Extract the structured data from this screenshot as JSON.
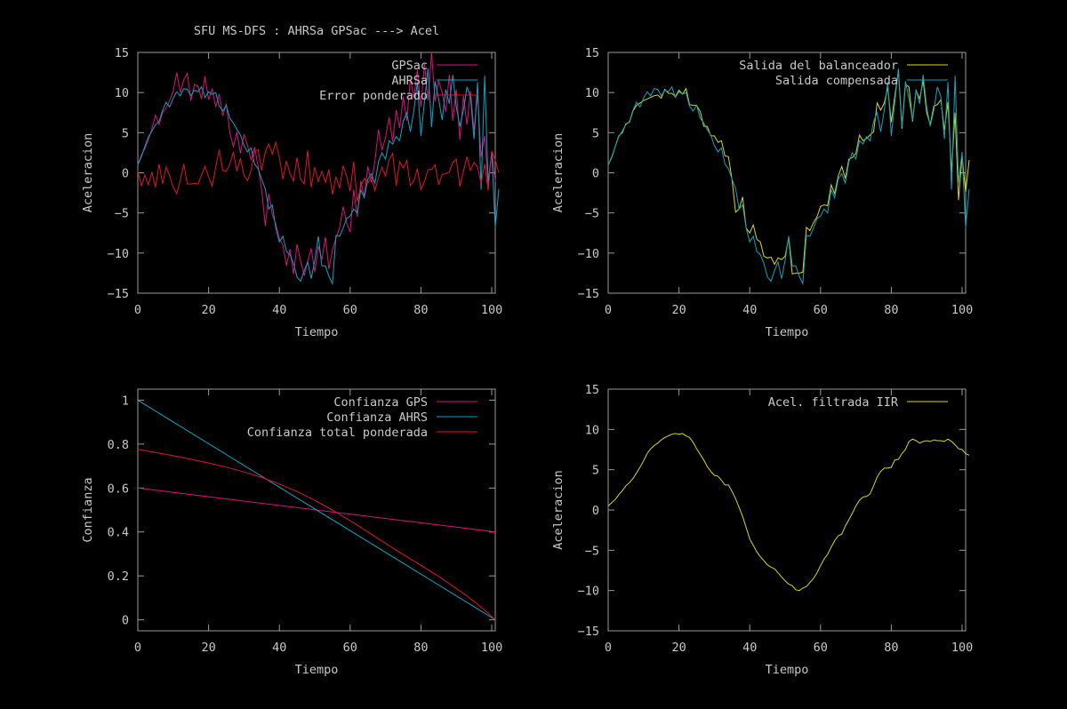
{
  "figure": {
    "title": "SFU MS-DFS : AHRSa GPSac ---> Acel"
  },
  "colors": {
    "background": "#000000",
    "axes": "#9a9a9a",
    "text": "#c8c8c8",
    "magenta": "#d6147d",
    "cyan": "#10a3c0",
    "red": "#e0142e",
    "yellow": "#d7d714"
  },
  "chart_data": [
    {
      "id": "p1",
      "type": "line",
      "title": "",
      "xlabel": "Tiempo",
      "ylabel": "Aceleracion",
      "xlim": [
        0,
        101
      ],
      "ylim": [
        -15,
        15
      ],
      "xticks": [
        0,
        20,
        40,
        60,
        80,
        100
      ],
      "yticks": [
        -15,
        -10,
        -5,
        0,
        5,
        10,
        15
      ],
      "grid": false,
      "legend_position": "top-right",
      "series": [
        {
          "name": "GPSac",
          "color": "#d6147d",
          "y": [
            1.0,
            2.2,
            3.0,
            4.1,
            5.5,
            7.2,
            6.0,
            7.5,
            8.1,
            9.0,
            10.2,
            12.5,
            10.0,
            11.6,
            12.4,
            9.0,
            11.0,
            10.8,
            9.2,
            12.0,
            9.1,
            10.5,
            8.2,
            9.8,
            7.1,
            8.6,
            5.0,
            3.2,
            5.1,
            2.4,
            4.8,
            3.4,
            1.6,
            3.2,
            0.8,
            -2.1,
            -6.6,
            -2.6,
            -5.2,
            -6.4,
            -8.2,
            -9.0,
            -11.6,
            -9.5,
            -12.6,
            -8.9,
            -11.0,
            -12.8,
            -11.1,
            -9.4,
            -12.4,
            -9.1,
            -10.8,
            -8.0,
            -12.0,
            -9.6,
            -8.1,
            -6.9,
            -4.2,
            -6.2,
            -7.4,
            -2.1,
            -5.5,
            -1.0,
            -3.0,
            0.8,
            -1.2,
            1.5,
            5.4,
            2.8,
            4.4,
            6.9,
            3.9,
            7.8,
            5.6,
            9.5,
            6.5,
            11.7,
            9.4,
            12.8,
            8.2,
            13.6,
            9.0,
            15.0,
            8.9,
            11.5,
            10.0,
            7.6,
            12.2,
            6.5,
            10.4,
            4.1,
            9.6,
            6.0,
            10.2,
            5.3,
            9.7,
            2.0,
            4.6,
            -1.5,
            2.7,
            -1.1
          ]
        },
        {
          "name": "AHRSa",
          "color": "#10a3c0",
          "y": [
            1.0,
            2.0,
            3.3,
            4.5,
            5.2,
            6.0,
            6.4,
            7.8,
            8.8,
            8.2,
            9.3,
            10.1,
            9.6,
            10.5,
            10.4,
            9.6,
            10.3,
            10.1,
            10.7,
            9.4,
            10.1,
            9.8,
            10.0,
            8.3,
            7.7,
            8.4,
            6.8,
            6.2,
            5.4,
            4.7,
            3.4,
            2.6,
            3.1,
            1.1,
            0.5,
            -0.8,
            -2.0,
            -4.5,
            -4.0,
            -6.9,
            -8.6,
            -7.9,
            -9.8,
            -10.2,
            -11.3,
            -13.0,
            -13.5,
            -12.2,
            -11.1,
            -13.2,
            -10.9,
            -7.9,
            -11.6,
            -11.6,
            -12.9,
            -13.8,
            -7.8,
            -7.9,
            -6.9,
            -5.7,
            -5.4,
            -4.5,
            -5.0,
            -2.1,
            -3.1,
            -0.8,
            -0.1,
            -1.3,
            1.4,
            2.5,
            1.7,
            4.0,
            3.6,
            4.5,
            4.0,
            6.4,
            7.5,
            5.1,
            7.8,
            11.3,
            4.6,
            8.9,
            13.0,
            5.7,
            11.4,
            9.2,
            6.6,
            10.4,
            8.6,
            12.2,
            8.2,
            5.8,
            7.8,
            10.7,
            9.5,
            4.2,
            11.3,
            -2.1,
            12.1,
            -1.2,
            2.6,
            -6.8,
            -2.0
          ]
        },
        {
          "name": "Error ponderado",
          "color": "#e0142e",
          "y": [
            0.2,
            -1.6,
            -0.3,
            -1.5,
            0.1,
            -1.8,
            1.1,
            -1.4,
            0.7,
            -0.4,
            -1.8,
            -2.6,
            -0.9,
            1.1,
            -1.4,
            -1.4,
            -1.3,
            -1.4,
            -0.3,
            0.8,
            -0.5,
            -1.7,
            0.7,
            2.9,
            0.3,
            0.2,
            1.1,
            2.6,
            0.2,
            1.8,
            -0.3,
            -1.0,
            0.3,
            2.7,
            2.9,
            0.3,
            2.6,
            3.6,
            2.3,
            3.8,
            1.9,
            -0.8,
            1.5,
            -0.1,
            -1.0,
            1.9,
            -0.8,
            -1.4,
            2.8,
            -1.8,
            0.7,
            -1.1,
            0.2,
            -1.2,
            0.4,
            -2.7,
            -0.5,
            -1.9,
            0.9,
            -0.4,
            -2.3,
            1.4,
            -3.6,
            -1.7,
            -0.7,
            -1.3,
            -0.5,
            -2.2,
            -0.6,
            0.7,
            -0.4,
            1.6,
            2.4,
            -1.6,
            1.4,
            0.6,
            1.5,
            -1.6,
            -1.0,
            0.5,
            -2.1,
            -1.1,
            0.4,
            0.4,
            1.0,
            -1.5,
            -0.2,
            -0.1,
            0.1,
            1.3,
            1.7,
            -1.7,
            0.2,
            2.0,
            0.3,
            1.3,
            0.7,
            -1.3,
            1.1,
            -2.2,
            2.7,
            1.6,
            0.0
          ]
        }
      ]
    },
    {
      "id": "p2",
      "type": "line",
      "title": "",
      "xlabel": "Tiempo",
      "ylabel": "Aceleracion",
      "xlim": [
        0,
        101
      ],
      "ylim": [
        -15,
        15
      ],
      "xticks": [
        0,
        20,
        40,
        60,
        80,
        100
      ],
      "yticks": [
        -15,
        -10,
        -5,
        0,
        5,
        10,
        15
      ],
      "grid": false,
      "legend_position": "top-right",
      "series": [
        {
          "name": "Salida del balanceador",
          "color": "#d7d714",
          "y": [
            1.0,
            1.9,
            3.3,
            4.6,
            5.0,
            6.1,
            6.3,
            7.7,
            8.4,
            8.7,
            9.0,
            9.2,
            9.4,
            9.6,
            9.7,
            9.3,
            10.4,
            9.9,
            9.9,
            9.5,
            10.3,
            9.8,
            10.5,
            8.5,
            8.4,
            8.4,
            7.6,
            5.8,
            5.8,
            4.6,
            4.6,
            3.8,
            4.0,
            2.1,
            2.0,
            -0.9,
            -4.9,
            -4.5,
            -3.0,
            -6.9,
            -7.5,
            -6.5,
            -8.3,
            -8.6,
            -10.4,
            -10.6,
            -10.5,
            -11.4,
            -10.6,
            -10.8,
            -10.4,
            -8.1,
            -12.6,
            -12.5,
            -12.5,
            -12.4,
            -6.8,
            -7.2,
            -6.2,
            -5.5,
            -4.2,
            -4.0,
            -4.1,
            -1.5,
            -2.6,
            -0.4,
            0.8,
            -0.7,
            1.7,
            1.9,
            2.4,
            4.7,
            4.0,
            4.3,
            4.7,
            5.1,
            8.7,
            7.8,
            8.7,
            10.6,
            6.3,
            9.6,
            12.7,
            5.5,
            11.0,
            10.7,
            6.4,
            10.3,
            9.2,
            11.5,
            7.5,
            6.0,
            8.3,
            8.5,
            9.1,
            5.3,
            8.8,
            0.1,
            7.5,
            -3.4,
            2.1,
            -2.4,
            1.6
          ]
        },
        {
          "name": "Salida compensada",
          "color": "#10a3c0",
          "y": [
            1.0,
            2.0,
            3.3,
            4.5,
            5.2,
            6.0,
            6.4,
            7.8,
            8.8,
            8.2,
            9.3,
            10.1,
            9.6,
            10.5,
            10.4,
            9.6,
            10.3,
            10.1,
            10.7,
            9.4,
            10.1,
            9.8,
            10.0,
            8.3,
            7.7,
            8.4,
            6.8,
            6.2,
            5.4,
            4.7,
            3.4,
            2.6,
            3.1,
            1.1,
            0.5,
            -0.8,
            -2.0,
            -4.5,
            -4.0,
            -6.9,
            -8.6,
            -7.9,
            -9.8,
            -10.2,
            -11.3,
            -13.0,
            -13.5,
            -12.2,
            -11.1,
            -13.2,
            -10.9,
            -7.9,
            -11.6,
            -11.6,
            -12.9,
            -13.8,
            -7.8,
            -7.9,
            -6.9,
            -5.7,
            -5.4,
            -4.5,
            -5.0,
            -2.1,
            -3.1,
            -0.8,
            -0.1,
            -1.3,
            1.4,
            2.5,
            1.7,
            4.0,
            3.6,
            4.5,
            4.0,
            6.4,
            7.5,
            5.1,
            7.8,
            11.3,
            4.6,
            8.9,
            13.0,
            5.7,
            11.4,
            9.2,
            6.6,
            10.4,
            8.6,
            12.2,
            8.2,
            5.8,
            7.8,
            10.7,
            9.5,
            4.2,
            11.3,
            -2.1,
            12.1,
            -1.2,
            2.6,
            -6.8,
            -2.0
          ]
        }
      ]
    },
    {
      "id": "p3",
      "type": "line",
      "title": "",
      "xlabel": "Tiempo",
      "ylabel": "Confianza",
      "xlim": [
        0,
        101
      ],
      "ylim": [
        -0.05,
        1.05
      ],
      "xticks": [
        0,
        20,
        40,
        60,
        80,
        100
      ],
      "yticks": [
        0,
        0.2,
        0.4,
        0.6,
        0.8,
        1
      ],
      "grid": false,
      "legend_position": "top-right",
      "series": [
        {
          "name": "Confianza GPS",
          "color": "#d6147d",
          "x": [
            0,
            101
          ],
          "y": [
            0.6,
            0.4
          ]
        },
        {
          "name": "Confianza AHRS",
          "color": "#10a3c0",
          "x": [
            0,
            101
          ],
          "y": [
            1.0,
            0.0
          ]
        },
        {
          "name": "Confianza total ponderada",
          "color": "#e0142e",
          "x": [
            0,
            5,
            10,
            15,
            20,
            25,
            30,
            35,
            40,
            45,
            50,
            55,
            60,
            65,
            70,
            75,
            80,
            85,
            90,
            93,
            96,
            98,
            99,
            100,
            101
          ],
          "y": [
            0.776,
            0.762,
            0.747,
            0.731,
            0.714,
            0.695,
            0.673,
            0.648,
            0.618,
            0.584,
            0.544,
            0.499,
            0.451,
            0.4,
            0.348,
            0.297,
            0.248,
            0.198,
            0.143,
            0.108,
            0.071,
            0.044,
            0.03,
            0.015,
            0.0
          ]
        }
      ]
    },
    {
      "id": "p4",
      "type": "line",
      "title": "",
      "xlabel": "Tiempo",
      "ylabel": "Aceleracion",
      "xlim": [
        0,
        101
      ],
      "ylim": [
        -15,
        15
      ],
      "xticks": [
        0,
        20,
        40,
        60,
        80,
        100
      ],
      "yticks": [
        -15,
        -10,
        -5,
        0,
        5,
        10,
        15
      ],
      "grid": false,
      "legend_position": "top-right",
      "series": [
        {
          "name": "Acel. filtrada IIR",
          "color": "#d7d714",
          "y": [
            0.5,
            0.9,
            1.3,
            1.9,
            2.4,
            3.0,
            3.4,
            3.9,
            4.6,
            5.3,
            6.1,
            7.0,
            7.6,
            8.0,
            8.3,
            8.7,
            9.0,
            9.2,
            9.4,
            9.5,
            9.4,
            9.5,
            9.2,
            9.0,
            8.4,
            7.6,
            6.9,
            6.2,
            5.4,
            4.8,
            4.3,
            4.2,
            3.7,
            3.1,
            3.1,
            2.3,
            1.4,
            0.3,
            -0.8,
            -2.2,
            -3.6,
            -4.4,
            -5.2,
            -5.8,
            -6.3,
            -6.8,
            -7.1,
            -7.3,
            -7.8,
            -8.3,
            -8.8,
            -9.2,
            -9.4,
            -9.9,
            -10.0,
            -9.7,
            -9.5,
            -9.0,
            -8.5,
            -7.8,
            -6.9,
            -6.1,
            -5.5,
            -4.6,
            -3.8,
            -3.2,
            -3.0,
            -2.0,
            -1.2,
            -0.4,
            0.5,
            1.2,
            1.6,
            1.7,
            2.0,
            3.0,
            4.1,
            4.8,
            5.2,
            5.2,
            5.3,
            6.2,
            6.3,
            7.0,
            7.5,
            8.5,
            8.8,
            8.6,
            8.3,
            8.5,
            8.6,
            8.5,
            8.7,
            8.6,
            8.6,
            8.5,
            8.8,
            8.5,
            8.1,
            7.6,
            7.5,
            7.0,
            6.8
          ]
        }
      ]
    }
  ]
}
